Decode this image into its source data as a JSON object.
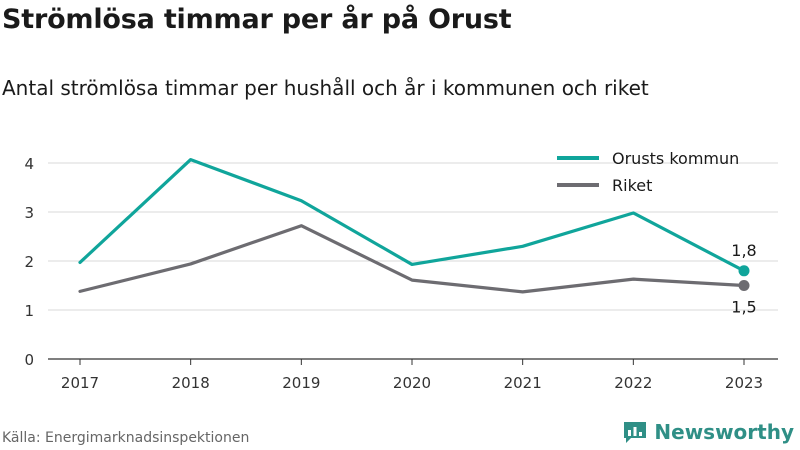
{
  "title": "Strömlösa timmar per år på Orust",
  "subtitle": "Antal strömlösa timmar per hushåll och år i kommunen och riket",
  "source": "Källa: Energimarknadsinspektionen",
  "brand": {
    "name": "Newsworthy",
    "icon": "newsworthy-logo-icon",
    "color": "#2f8f86"
  },
  "chart_data": {
    "type": "line",
    "x": [
      "2017",
      "2018",
      "2019",
      "2020",
      "2021",
      "2022",
      "2023"
    ],
    "series": [
      {
        "name": "Orusts kommun",
        "color": "#10a59b",
        "values": [
          1.97,
          4.07,
          3.23,
          1.93,
          2.3,
          2.98,
          1.8
        ]
      },
      {
        "name": "Riket",
        "color": "#6d6c71",
        "values": [
          1.38,
          1.94,
          2.72,
          1.61,
          1.37,
          1.63,
          1.5
        ]
      }
    ],
    "end_labels": [
      "1,8",
      "1,5"
    ],
    "yticks": [
      "0",
      "1",
      "2",
      "3",
      "4"
    ],
    "ylim": [
      0,
      4.4
    ],
    "grid": true,
    "legend": "top-right"
  }
}
